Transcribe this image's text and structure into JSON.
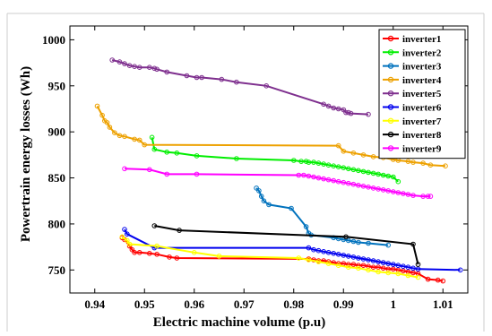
{
  "chart_data": {
    "type": "line",
    "title": "",
    "xlabel": "Electric machine volume (p.u)",
    "ylabel": "Powertrain energy losses (Wh)",
    "xlim": [
      0.935,
      1.015
    ],
    "ylim": [
      725,
      1015
    ],
    "xticks": [
      0.94,
      0.95,
      0.96,
      0.97,
      0.98,
      0.99,
      1,
      1.01
    ],
    "xtick_labels": [
      "0.94",
      "0.95",
      "0.96",
      "0.97",
      "0.98",
      "0.99",
      "1",
      "1.01"
    ],
    "yticks": [
      750,
      800,
      850,
      900,
      950,
      1000
    ],
    "ytick_labels": [
      "750",
      "800",
      "850",
      "900",
      "950",
      "1000"
    ],
    "grid": false,
    "legend_position": "top-right",
    "marker": "open-circle",
    "series": [
      {
        "name": "inverter1",
        "color": "#ff0000",
        "x": [
          0.9455,
          0.946,
          0.947,
          0.9475,
          0.948,
          0.949,
          0.951,
          0.9525,
          0.955,
          0.9565,
          0.983,
          0.984,
          0.985,
          0.986,
          0.987,
          0.988,
          0.989,
          0.99,
          0.991,
          0.992,
          0.993,
          0.994,
          0.995,
          0.996,
          0.997,
          0.998,
          0.999,
          1.0,
          1.001,
          1.002,
          1.003,
          1.004,
          1.005,
          1.007,
          1.009,
          1.01
        ],
        "y": [
          785,
          783,
          776,
          772,
          769,
          769,
          768,
          767,
          764,
          763,
          762,
          761,
          760,
          760,
          759,
          758,
          757,
          757,
          756,
          756,
          755,
          755,
          754,
          753,
          753,
          752,
          751,
          751,
          750,
          749,
          748,
          747,
          746,
          740,
          739,
          738
        ]
      },
      {
        "name": "inverter2",
        "color": "#00ee00",
        "x": [
          0.9515,
          0.952,
          0.9545,
          0.9565,
          0.9605,
          0.9685,
          0.98,
          0.9815,
          0.9825,
          0.983,
          0.984,
          0.985,
          0.986,
          0.987,
          0.988,
          0.989,
          0.99,
          0.991,
          0.992,
          0.993,
          0.994,
          0.995,
          0.996,
          0.997,
          0.998,
          0.999,
          1.0,
          1.001
        ],
        "y": [
          894,
          881,
          878,
          877,
          874,
          871,
          869,
          868,
          868,
          867,
          867,
          866,
          865,
          864,
          863,
          862,
          861,
          860,
          859,
          858,
          857,
          856,
          855,
          854,
          853,
          852,
          851,
          846
        ]
      },
      {
        "name": "inverter3",
        "color": "#0072bd",
        "x": [
          0.9725,
          0.973,
          0.9735,
          0.974,
          0.975,
          0.9795,
          0.9825,
          0.983,
          0.9835,
          0.988,
          0.989,
          0.99,
          0.991,
          0.992,
          0.993,
          0.995,
          0.999
        ],
        "y": [
          839,
          836,
          830,
          825,
          821,
          817,
          797,
          790,
          788,
          785,
          784,
          783,
          782,
          781,
          780,
          779,
          777
        ]
      },
      {
        "name": "inverter4",
        "color": "#eda100",
        "x": [
          0.9405,
          0.9415,
          0.942,
          0.9425,
          0.943,
          0.944,
          0.945,
          0.946,
          0.948,
          0.949,
          0.95,
          0.989,
          0.99,
          0.992,
          0.994,
          0.996,
          0.998,
          1.0,
          1.001,
          1.003,
          1.004,
          1.006,
          1.0075,
          1.0105
        ],
        "y": [
          928,
          918,
          912,
          910,
          905,
          899,
          896,
          895,
          892,
          891,
          886,
          885,
          879,
          877,
          875,
          873,
          872,
          870,
          869,
          868,
          867,
          866,
          864,
          863
        ]
      },
      {
        "name": "inverter5",
        "color": "#7e2f8e",
        "x": [
          0.9435,
          0.945,
          0.946,
          0.947,
          0.948,
          0.949,
          0.951,
          0.952,
          0.9525,
          0.9545,
          0.9585,
          0.9605,
          0.9615,
          0.9655,
          0.9685,
          0.9745,
          0.986,
          0.987,
          0.988,
          0.989,
          0.99,
          0.9905,
          0.991,
          0.9915,
          0.995
        ],
        "y": [
          978,
          976,
          974,
          972,
          971,
          970,
          970,
          969,
          968,
          965,
          961,
          959,
          959,
          957,
          954,
          950,
          930,
          928,
          926,
          925,
          924,
          921,
          921,
          920,
          919
        ]
      },
      {
        "name": "inverter6",
        "color": "#0000ee",
        "x": [
          0.946,
          0.9465,
          0.952,
          0.983,
          0.984,
          0.985,
          0.986,
          0.987,
          0.988,
          0.989,
          0.99,
          0.991,
          0.992,
          0.993,
          0.994,
          0.995,
          0.996,
          0.997,
          0.998,
          0.999,
          1.0,
          1.001,
          1.002,
          1.003,
          1.004,
          1.005,
          1.0135
        ],
        "y": [
          794,
          789,
          774,
          774,
          772,
          771,
          770,
          769,
          768,
          767,
          766,
          765,
          764,
          763,
          762,
          761,
          760,
          759,
          758,
          757,
          756,
          755,
          754,
          753,
          752,
          751,
          750
        ]
      },
      {
        "name": "inverter7",
        "color": "#ffff00",
        "x": [
          0.9455,
          0.9465,
          0.947,
          0.9525,
          0.96,
          0.965,
          0.981,
          0.983,
          0.985,
          0.987,
          0.989,
          0.991,
          0.993,
          0.995,
          0.997,
          0.999,
          1.001,
          1.003,
          1.005
        ],
        "y": [
          786,
          782,
          778,
          776,
          769,
          765,
          763,
          761,
          759,
          757,
          755,
          753,
          752,
          750,
          748,
          747,
          746,
          744,
          742
        ]
      },
      {
        "name": "inverter8",
        "color": "#000000",
        "x": [
          0.952,
          0.957,
          0.9905,
          1.004,
          1.005
        ],
        "y": [
          798,
          793,
          786,
          778,
          756
        ]
      },
      {
        "name": "inverter9",
        "color": "#ff00ff",
        "x": [
          0.946,
          0.951,
          0.9545,
          0.9605,
          0.981,
          0.982,
          0.983,
          0.984,
          0.985,
          0.986,
          0.987,
          0.988,
          0.989,
          0.99,
          0.991,
          0.992,
          0.993,
          0.994,
          0.995,
          0.996,
          0.997,
          0.998,
          0.999,
          1.0,
          1.001,
          1.002,
          1.003,
          1.004,
          1.006,
          1.007,
          1.0075
        ],
        "y": [
          860,
          859,
          854,
          854,
          853,
          853,
          852,
          851,
          850,
          849,
          848,
          847,
          846,
          845,
          844,
          843,
          842,
          841,
          840,
          839,
          838,
          837,
          836,
          835,
          834,
          833,
          832,
          831,
          830,
          830,
          830
        ]
      }
    ]
  }
}
